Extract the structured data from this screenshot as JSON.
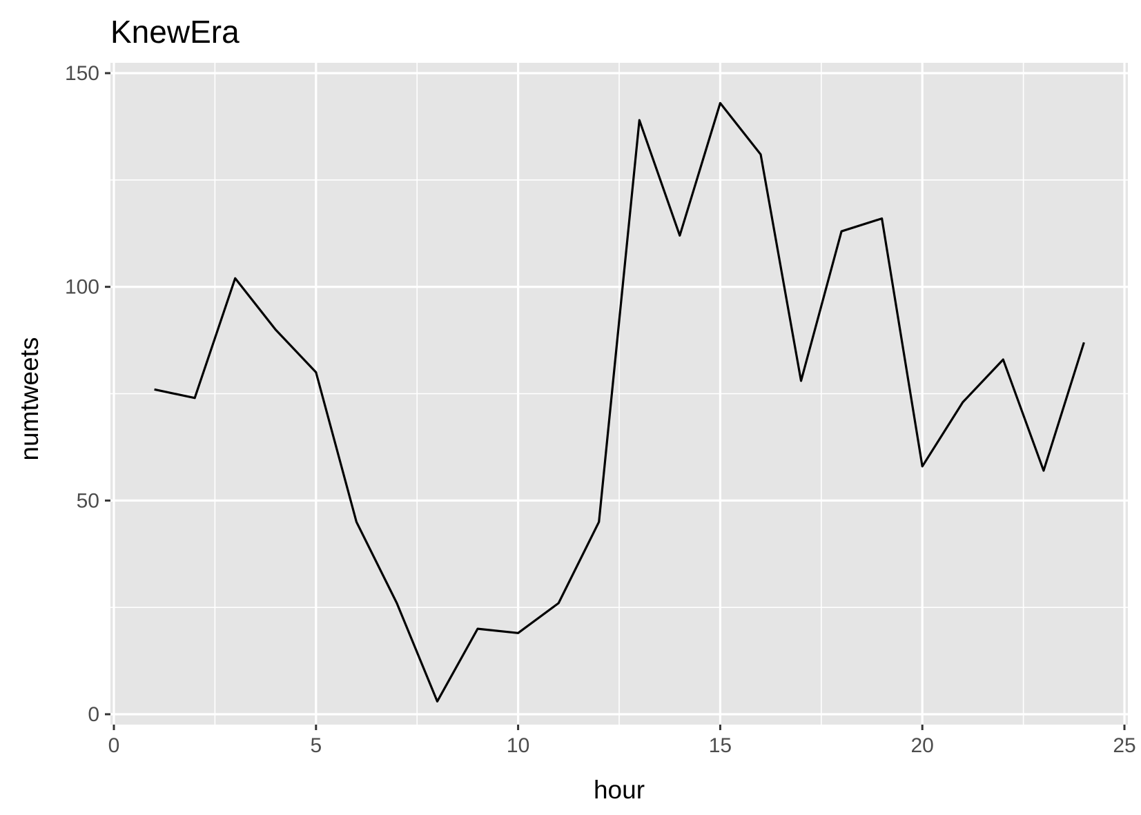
{
  "chart_data": {
    "type": "line",
    "title": "KnewEra",
    "xlabel": "hour",
    "ylabel": "numtweets",
    "xlim": [
      0,
      25
    ],
    "ylim": [
      0,
      150
    ],
    "x_ticks": [
      0,
      5,
      10,
      15,
      20,
      25
    ],
    "x_tick_labels": [
      "0",
      "5",
      "10",
      "15",
      "20",
      "25"
    ],
    "y_ticks": [
      0,
      50,
      100,
      150
    ],
    "y_tick_labels": [
      "0",
      "50",
      "100",
      "150"
    ],
    "grid": true,
    "legend": "none",
    "colors": {
      "panel": "#e5e5e5",
      "grid": "#ffffff",
      "line": "#000000",
      "tick": "#333333"
    },
    "series": [
      {
        "x": [
          1,
          2,
          3,
          4,
          5,
          6,
          7,
          8,
          9,
          10,
          11,
          12,
          13,
          14,
          15,
          16,
          17,
          18,
          19,
          20,
          21,
          22,
          23,
          24
        ],
        "y": [
          76,
          74,
          102,
          90,
          80,
          45,
          26,
          3,
          20,
          19,
          26,
          45,
          139,
          112,
          143,
          131,
          78,
          113,
          116,
          58,
          73,
          83,
          57,
          87
        ]
      }
    ]
  }
}
